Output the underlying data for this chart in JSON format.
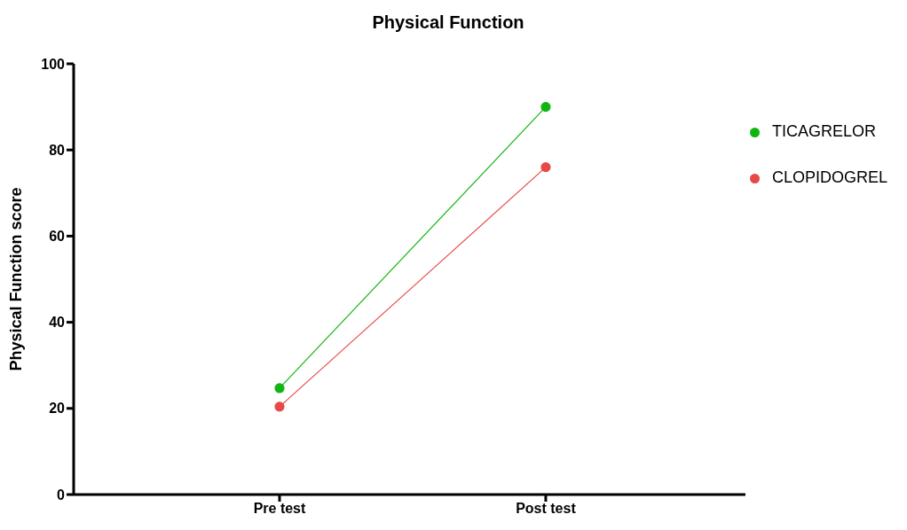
{
  "chart_data": {
    "type": "line",
    "title": "Physical Function",
    "ylabel": "Physical Function score",
    "categories": [
      "Pre test",
      "Post test"
    ],
    "series": [
      {
        "name": "TICAGRELOR",
        "color": "#11b511",
        "values": [
          24.7,
          90
        ]
      },
      {
        "name": "CLOPIDOGREL",
        "color": "#e84848",
        "values": [
          20.4,
          76
        ]
      }
    ],
    "ylim": [
      0,
      100
    ],
    "yticks": [
      0,
      20,
      40,
      60,
      80,
      100
    ],
    "grid": false,
    "legend": "top right",
    "marker": "circle",
    "line_style": "solid"
  }
}
